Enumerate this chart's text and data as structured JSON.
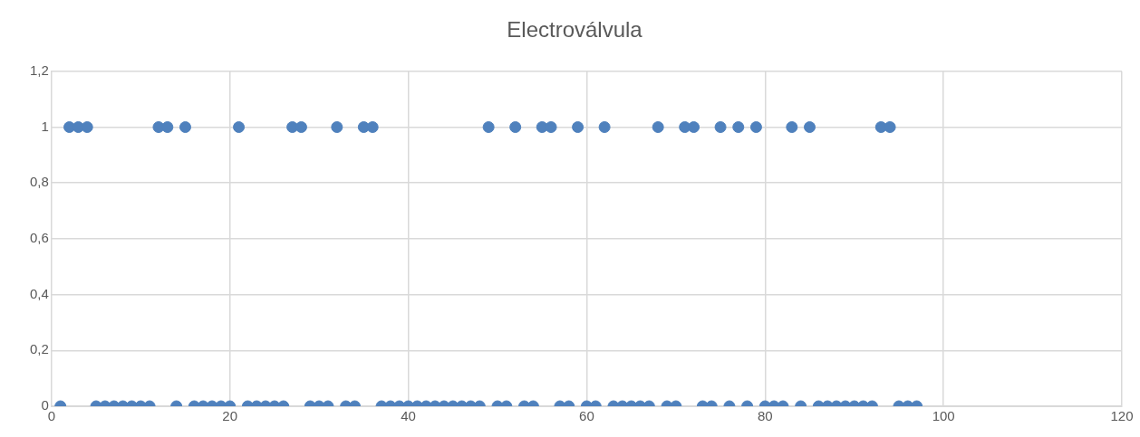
{
  "chart_data": {
    "type": "scatter",
    "title": "Electroválvula",
    "x": [
      1,
      2,
      3,
      4,
      5,
      6,
      7,
      8,
      9,
      10,
      11,
      12,
      13,
      14,
      15,
      16,
      17,
      18,
      19,
      20,
      21,
      22,
      23,
      24,
      25,
      26,
      27,
      28,
      29,
      30,
      31,
      32,
      33,
      34,
      35,
      36,
      37,
      38,
      39,
      40,
      41,
      42,
      43,
      44,
      45,
      46,
      47,
      48,
      49,
      50,
      51,
      52,
      53,
      54,
      55,
      56,
      57,
      58,
      59,
      60,
      61,
      62,
      63,
      64,
      65,
      66,
      67,
      68,
      69,
      70,
      71,
      72,
      73,
      74,
      75,
      76,
      77,
      78,
      79,
      80,
      81,
      82,
      83,
      84,
      85,
      86,
      87,
      88,
      89,
      90,
      91,
      92,
      93,
      94,
      95,
      96,
      97
    ],
    "series": [
      {
        "color": "#4f81bd",
        "values": [
          0,
          1,
          1,
          1,
          0,
          0,
          0,
          0,
          0,
          0,
          0,
          1,
          1,
          0,
          1,
          0,
          0,
          0,
          0,
          0,
          1,
          0,
          0,
          0,
          0,
          0,
          1,
          1,
          0,
          0,
          0,
          1,
          0,
          0,
          1,
          1,
          0,
          0,
          0,
          0,
          0,
          0,
          0,
          0,
          0,
          0,
          0,
          0,
          1,
          0,
          0,
          1,
          0,
          0,
          1,
          1,
          0,
          0,
          1,
          0,
          0,
          1,
          0,
          0,
          0,
          0,
          0,
          1,
          0,
          0,
          1,
          1,
          0,
          0,
          1,
          0,
          1,
          0,
          1,
          0,
          0,
          0,
          1,
          0,
          1,
          0,
          0,
          0,
          0,
          0,
          0,
          0,
          1,
          1,
          0,
          0,
          0
        ]
      }
    ],
    "xlim": [
      0,
      120
    ],
    "xticks": [
      0,
      20,
      40,
      60,
      80,
      100,
      120
    ],
    "ylim": [
      0,
      1.2
    ],
    "yticks": [
      0,
      {
        "value": 0.2,
        "label": "0,2"
      },
      {
        "value": 0.4,
        "label": "0,4"
      },
      {
        "value": 0.6,
        "label": "0,6"
      },
      {
        "value": 0.8,
        "label": "0,8"
      },
      1,
      {
        "value": 1.2,
        "label": "1,2"
      }
    ],
    "grid": true,
    "legend": false,
    "marker": "circle"
  }
}
